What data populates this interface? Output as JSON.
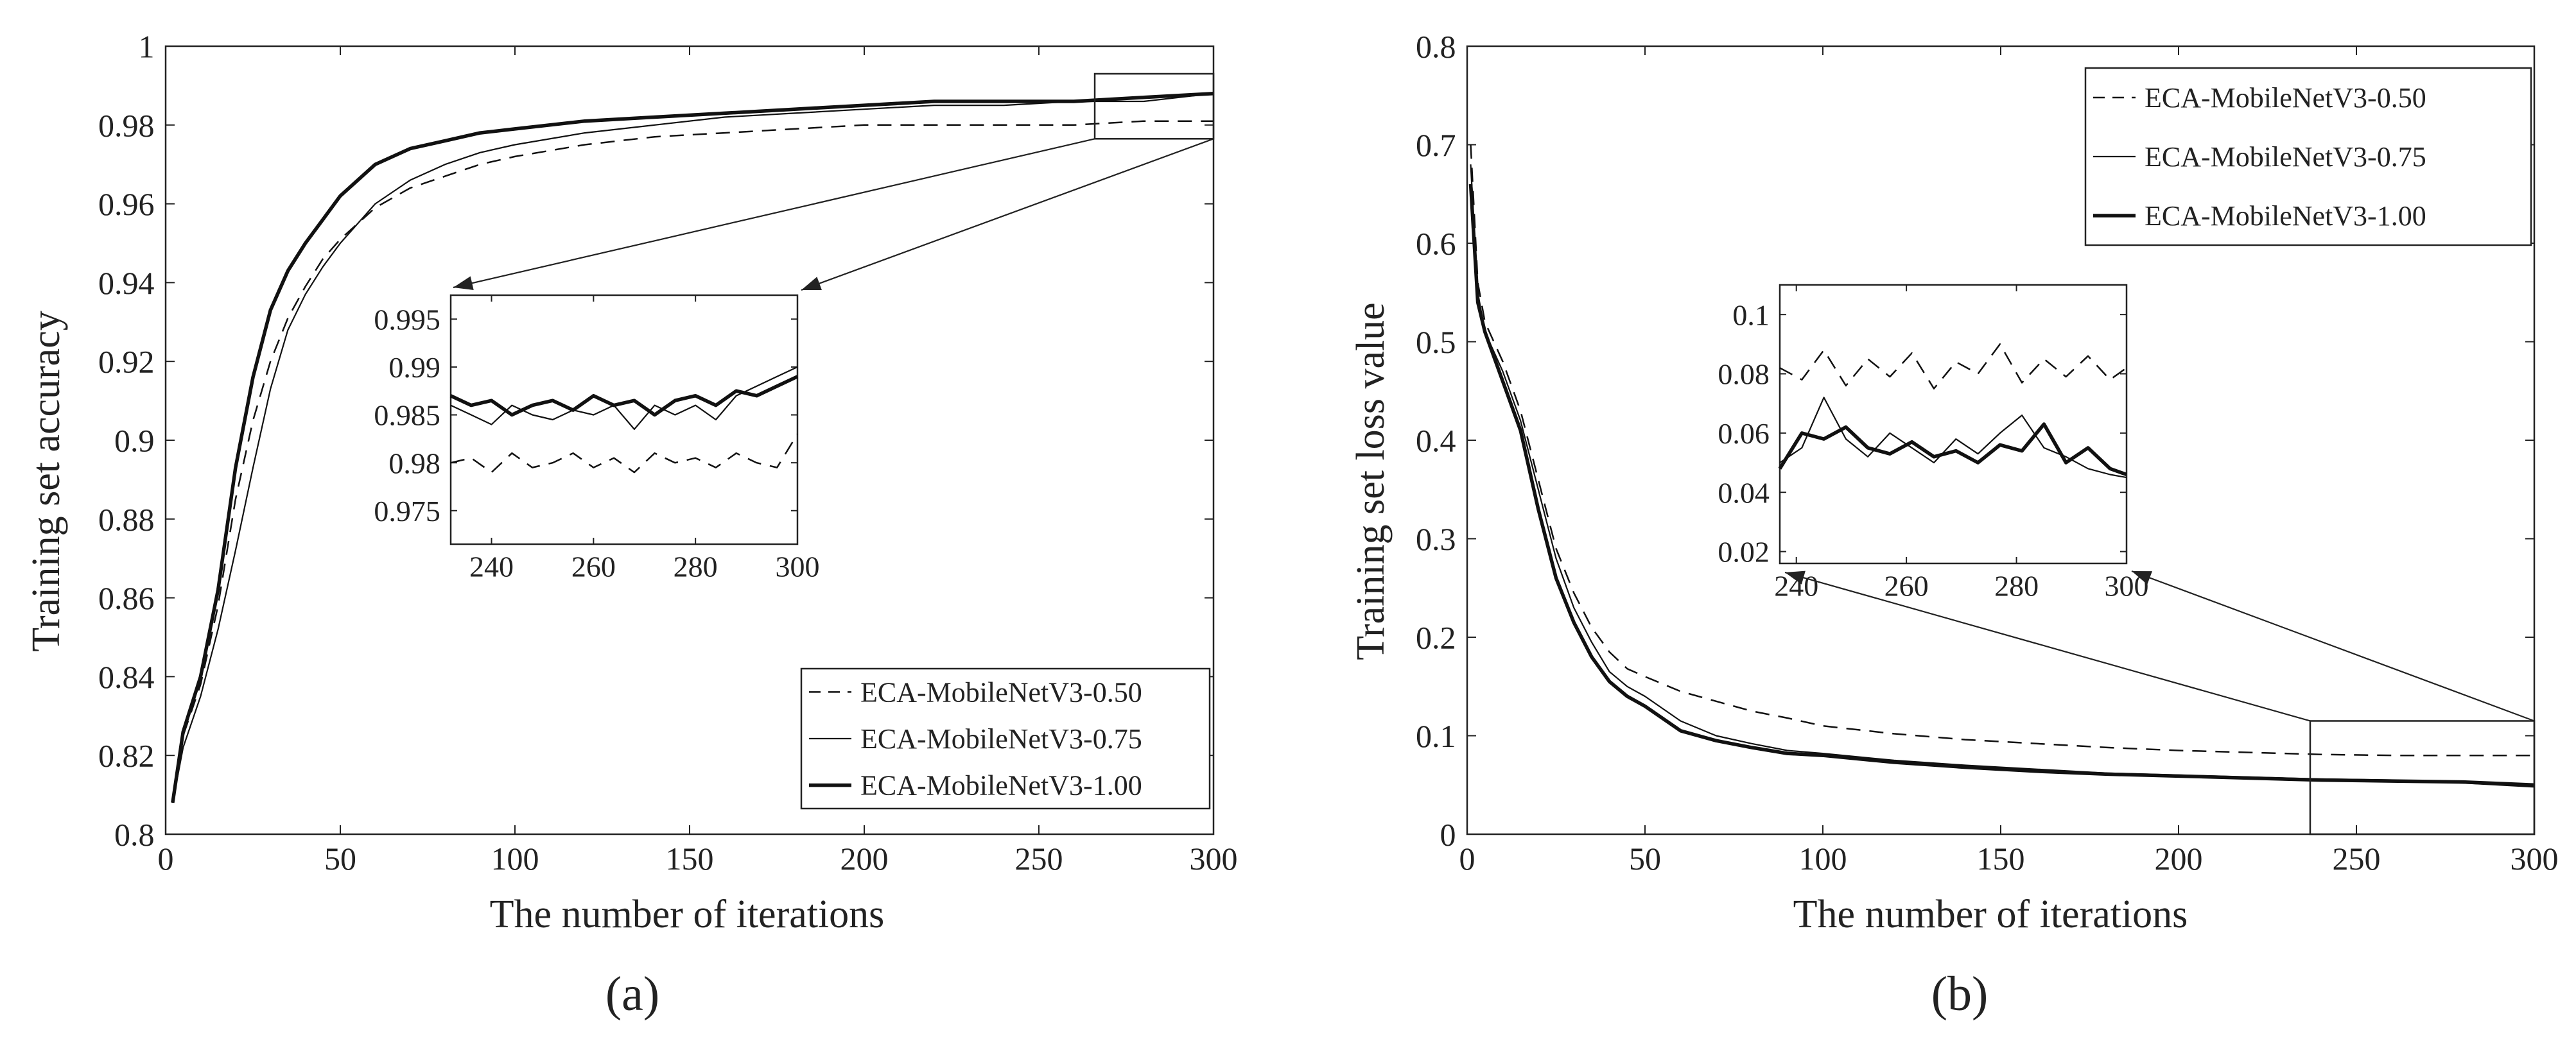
{
  "chart_data": [
    {
      "panel": "a",
      "caption": "(a)",
      "type": "line",
      "xlabel": "The number of iterations",
      "ylabel": "Training set accuracy",
      "xlim": [
        0,
        300
      ],
      "ylim": [
        0.8,
        1
      ],
      "xticks": [
        0,
        50,
        100,
        150,
        200,
        250,
        300
      ],
      "yticks": [
        0.8,
        0.82,
        0.84,
        0.86,
        0.88,
        0.9,
        0.92,
        0.94,
        0.96,
        0.98,
        1
      ],
      "ytick_labels": [
        "0.8",
        "0.82",
        "0.84",
        "0.86",
        "0.88",
        "0.9",
        "0.92",
        "0.94",
        "0.96",
        "0.98",
        "1"
      ],
      "legend_location": "bottom-right",
      "x": [
        2,
        5,
        10,
        15,
        20,
        25,
        30,
        35,
        40,
        45,
        50,
        60,
        70,
        80,
        90,
        100,
        120,
        140,
        160,
        180,
        200,
        220,
        240,
        260,
        280,
        300
      ],
      "series": [
        {
          "name": "ECA-MobileNetV3-0.50",
          "style": "dashed",
          "values": [
            0.808,
            0.825,
            0.838,
            0.858,
            0.885,
            0.905,
            0.92,
            0.931,
            0.939,
            0.946,
            0.951,
            0.959,
            0.964,
            0.967,
            0.97,
            0.972,
            0.975,
            0.977,
            0.978,
            0.979,
            0.98,
            0.98,
            0.98,
            0.98,
            0.981,
            0.981
          ]
        },
        {
          "name": "ECA-MobileNetV3-0.75",
          "style": "thin",
          "values": [
            0.808,
            0.822,
            0.835,
            0.852,
            0.872,
            0.893,
            0.913,
            0.928,
            0.937,
            0.944,
            0.95,
            0.96,
            0.966,
            0.97,
            0.973,
            0.975,
            0.978,
            0.98,
            0.982,
            0.983,
            0.984,
            0.985,
            0.985,
            0.986,
            0.986,
            0.988
          ]
        },
        {
          "name": "ECA-MobileNetV3-1.00",
          "style": "thick",
          "values": [
            0.808,
            0.826,
            0.84,
            0.862,
            0.893,
            0.916,
            0.933,
            0.943,
            0.95,
            0.956,
            0.962,
            0.97,
            0.974,
            0.976,
            0.978,
            0.979,
            0.981,
            0.982,
            0.983,
            0.984,
            0.985,
            0.986,
            0.986,
            0.986,
            0.987,
            0.988
          ]
        }
      ],
      "inset": {
        "xlim": [
          232,
          300
        ],
        "ylim": [
          0.9715,
          0.9975
        ],
        "xticks": [
          240,
          260,
          280,
          300
        ],
        "yticks": [
          0.975,
          0.98,
          0.985,
          0.99,
          0.995
        ],
        "ytick_labels": [
          "0.975",
          "0.98",
          "0.985",
          "0.99",
          "0.995"
        ],
        "x": [
          232,
          236,
          240,
          244,
          248,
          252,
          256,
          260,
          264,
          268,
          272,
          276,
          280,
          284,
          288,
          292,
          296,
          300
        ],
        "series": [
          {
            "name": "ECA-MobileNetV3-0.50",
            "style": "dashed",
            "values": [
              0.98,
              0.9805,
              0.979,
              0.981,
              0.9795,
              0.98,
              0.981,
              0.9795,
              0.9805,
              0.979,
              0.981,
              0.98,
              0.9805,
              0.9795,
              0.981,
              0.98,
              0.9795,
              0.983
            ]
          },
          {
            "name": "ECA-MobileNetV3-0.75",
            "style": "thin",
            "values": [
              0.986,
              0.985,
              0.984,
              0.986,
              0.985,
              0.9845,
              0.9855,
              0.985,
              0.986,
              0.9835,
              0.986,
              0.985,
              0.986,
              0.9845,
              0.987,
              0.988,
              0.989,
              0.99
            ]
          },
          {
            "name": "ECA-MobileNetV3-1.00",
            "style": "thick",
            "values": [
              0.987,
              0.986,
              0.9865,
              0.985,
              0.986,
              0.9865,
              0.9855,
              0.987,
              0.986,
              0.9865,
              0.985,
              0.9865,
              0.987,
              0.986,
              0.9875,
              0.987,
              0.988,
              0.989
            ]
          }
        ]
      }
    },
    {
      "panel": "b",
      "caption": "(b)",
      "type": "line",
      "xlabel": "The number of iterations",
      "ylabel": "Training set loss value",
      "xlim": [
        0,
        300
      ],
      "ylim": [
        0,
        0.8
      ],
      "xticks": [
        0,
        50,
        100,
        150,
        200,
        250,
        300
      ],
      "yticks": [
        0,
        0.1,
        0.2,
        0.3,
        0.4,
        0.5,
        0.6,
        0.7,
        0.8
      ],
      "ytick_labels": [
        "0",
        "0.1",
        "0.2",
        "0.3",
        "0.4",
        "0.5",
        "0.6",
        "0.7",
        "0.8"
      ],
      "legend_location": "top-right",
      "x": [
        1,
        3,
        5,
        10,
        15,
        20,
        25,
        30,
        35,
        40,
        45,
        50,
        60,
        70,
        80,
        90,
        100,
        120,
        140,
        160,
        180,
        200,
        220,
        240,
        260,
        280,
        300
      ],
      "series": [
        {
          "name": "ECA-MobileNetV3-0.50",
          "style": "dashed",
          "values": [
            0.7,
            0.56,
            0.52,
            0.48,
            0.43,
            0.36,
            0.29,
            0.245,
            0.21,
            0.185,
            0.168,
            0.16,
            0.145,
            0.135,
            0.125,
            0.118,
            0.11,
            0.102,
            0.096,
            0.092,
            0.088,
            0.085,
            0.083,
            0.081,
            0.08,
            0.08,
            0.08
          ]
        },
        {
          "name": "ECA-MobileNetV3-0.75",
          "style": "thin",
          "values": [
            0.68,
            0.55,
            0.51,
            0.47,
            0.42,
            0.35,
            0.28,
            0.23,
            0.195,
            0.165,
            0.15,
            0.14,
            0.115,
            0.1,
            0.092,
            0.085,
            0.082,
            0.075,
            0.07,
            0.066,
            0.062,
            0.06,
            0.058,
            0.056,
            0.055,
            0.052,
            0.048
          ]
        },
        {
          "name": "ECA-MobileNetV3-1.00",
          "style": "thick",
          "values": [
            0.66,
            0.54,
            0.51,
            0.46,
            0.41,
            0.33,
            0.26,
            0.215,
            0.18,
            0.155,
            0.14,
            0.13,
            0.105,
            0.095,
            0.088,
            0.082,
            0.08,
            0.073,
            0.068,
            0.064,
            0.061,
            0.059,
            0.057,
            0.055,
            0.054,
            0.053,
            0.05
          ]
        }
      ],
      "inset": {
        "xlim": [
          237,
          300
        ],
        "ylim": [
          0.016,
          0.11
        ],
        "xticks": [
          240,
          260,
          280,
          300
        ],
        "yticks": [
          0.02,
          0.04,
          0.06,
          0.08,
          0.1
        ],
        "ytick_labels": [
          "0.02",
          "0.04",
          "0.06",
          "0.08",
          "0.1"
        ],
        "x": [
          237,
          241,
          245,
          249,
          253,
          257,
          261,
          265,
          269,
          273,
          277,
          281,
          285,
          289,
          293,
          297,
          300
        ],
        "series": [
          {
            "name": "ECA-MobileNetV3-0.50",
            "style": "dashed",
            "values": [
              0.082,
              0.078,
              0.088,
              0.076,
              0.085,
              0.079,
              0.087,
              0.075,
              0.084,
              0.08,
              0.09,
              0.077,
              0.085,
              0.079,
              0.086,
              0.078,
              0.082
            ]
          },
          {
            "name": "ECA-MobileNetV3-0.75",
            "style": "thin",
            "values": [
              0.05,
              0.055,
              0.072,
              0.058,
              0.052,
              0.06,
              0.055,
              0.05,
              0.058,
              0.053,
              0.06,
              0.066,
              0.055,
              0.052,
              0.048,
              0.046,
              0.045
            ]
          },
          {
            "name": "ECA-MobileNetV3-1.00",
            "style": "thick",
            "values": [
              0.048,
              0.06,
              0.058,
              0.062,
              0.055,
              0.053,
              0.057,
              0.052,
              0.054,
              0.05,
              0.056,
              0.054,
              0.063,
              0.05,
              0.055,
              0.048,
              0.046
            ]
          }
        ]
      }
    }
  ]
}
